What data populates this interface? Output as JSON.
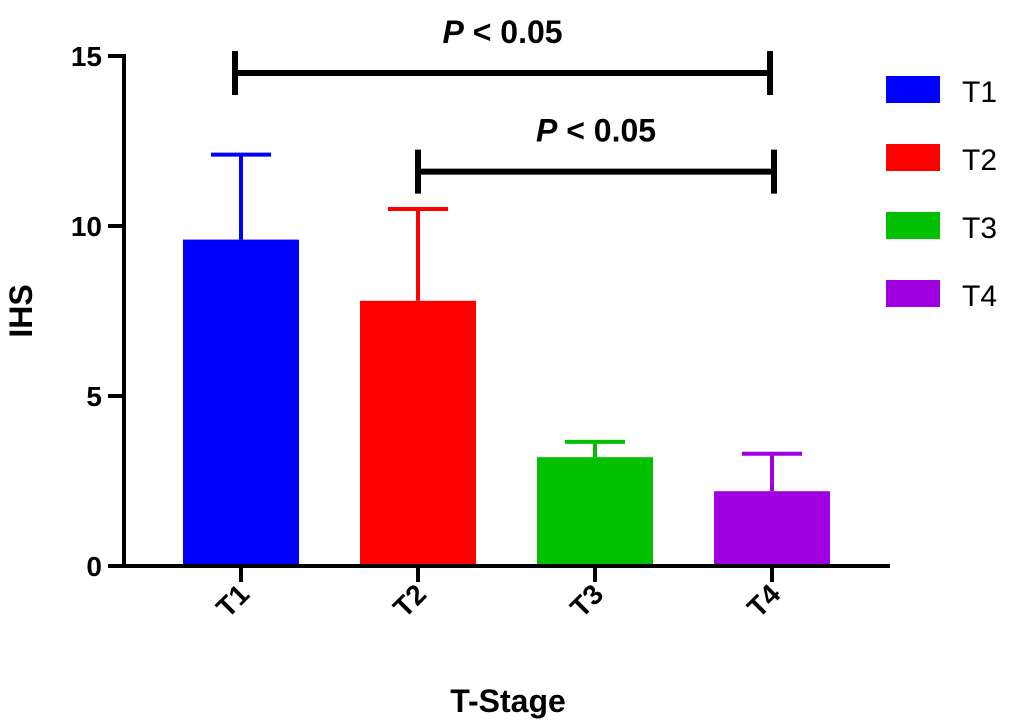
{
  "chart_data": {
    "type": "bar",
    "categories": [
      "T1",
      "T2",
      "T3",
      "T4"
    ],
    "values": [
      9.6,
      7.8,
      3.2,
      2.2
    ],
    "errors": [
      2.5,
      2.7,
      0.45,
      1.1
    ],
    "colors": [
      "#0000ff",
      "#ff0000",
      "#00c000",
      "#a000e0"
    ],
    "xlabel": "T-Stage",
    "ylabel": "IHS",
    "ylim": [
      0,
      15
    ],
    "yticks": [
      "0",
      "5",
      "10",
      "15"
    ],
    "ytick_values": [
      0,
      5,
      10,
      15
    ],
    "legend": {
      "placement": "right",
      "entries": [
        "T1",
        "T2",
        "T3",
        "T4"
      ]
    },
    "annotations": [
      {
        "from": "T1",
        "to": "T4",
        "label_prefix": "P",
        "label_suffix": " < 0.05",
        "y": 14.5
      },
      {
        "from": "T2",
        "to": "T4",
        "label_prefix": "P",
        "label_suffix": " < 0.05",
        "y": 11.6
      }
    ],
    "grid": false
  }
}
